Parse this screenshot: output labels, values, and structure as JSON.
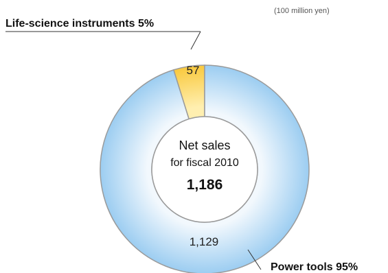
{
  "chart_data": {
    "type": "pie",
    "unit_label": "(100 million yen)",
    "center": {
      "line1": "Net sales",
      "line2": "for fiscal 2010",
      "total": "1,186"
    },
    "slices": [
      {
        "name": "Life-science instruments",
        "callout": "Life-science instruments  5%",
        "value": 57,
        "value_label": "57",
        "percent": 5,
        "color": "#ffd45a"
      },
      {
        "name": "Power tools",
        "callout": "Power tools  95%",
        "value": 1129,
        "value_label": "1,129",
        "percent": 95,
        "color": "#a9d4f4"
      }
    ],
    "colors": {
      "ring_edge": "#9a9a9a",
      "power_inner": "#f2f8fd",
      "power_outer": "#9ccdf1",
      "life_inner": "#ffefb0",
      "life_outer": "#f9c93e"
    }
  }
}
